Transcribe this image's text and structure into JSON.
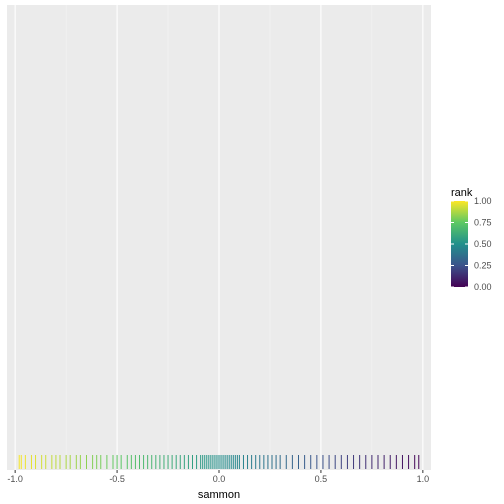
{
  "chart_data": {
    "type": "rug",
    "xlabel": "sammon",
    "xlim": [
      -1.04,
      1.04
    ],
    "x_ticks": [
      -1.0,
      -0.5,
      0.0,
      0.5,
      1.0
    ],
    "x_tick_labels": [
      "-1.0",
      "-0.5",
      "0.0",
      "0.5",
      "1.0"
    ],
    "grid": true,
    "color_scale": {
      "title": "rank",
      "palette": "viridis",
      "range": [
        0,
        1
      ],
      "ticks": [
        1.0,
        0.75,
        0.5,
        0.25,
        0.0
      ],
      "tick_labels": [
        "1.00",
        "0.75",
        "0.50",
        "0.25",
        "0.00"
      ],
      "colors": [
        "#440154",
        "#3b528b",
        "#21908c",
        "#5dc863",
        "#fde725"
      ]
    },
    "legend_position": "right",
    "x_values": [
      -0.98,
      -0.97,
      -0.95,
      -0.92,
      -0.9,
      -0.87,
      -0.85,
      -0.82,
      -0.8,
      -0.78,
      -0.75,
      -0.73,
      -0.7,
      -0.68,
      -0.65,
      -0.62,
      -0.6,
      -0.58,
      -0.55,
      -0.52,
      -0.5,
      -0.48,
      -0.45,
      -0.43,
      -0.41,
      -0.39,
      -0.37,
      -0.35,
      -0.33,
      -0.31,
      -0.29,
      -0.27,
      -0.25,
      -0.23,
      -0.21,
      -0.19,
      -0.17,
      -0.15,
      -0.13,
      -0.11,
      -0.09,
      -0.08,
      -0.07,
      -0.06,
      -0.05,
      -0.04,
      -0.03,
      -0.02,
      -0.01,
      0.0,
      0.01,
      0.02,
      0.03,
      0.04,
      0.05,
      0.06,
      0.07,
      0.08,
      0.09,
      0.1,
      0.12,
      0.14,
      0.16,
      0.18,
      0.2,
      0.22,
      0.24,
      0.26,
      0.28,
      0.3,
      0.33,
      0.36,
      0.39,
      0.42,
      0.45,
      0.48,
      0.51,
      0.54,
      0.57,
      0.6,
      0.63,
      0.66,
      0.69,
      0.72,
      0.75,
      0.78,
      0.81,
      0.84,
      0.87,
      0.9,
      0.93,
      0.96,
      0.98
    ]
  }
}
